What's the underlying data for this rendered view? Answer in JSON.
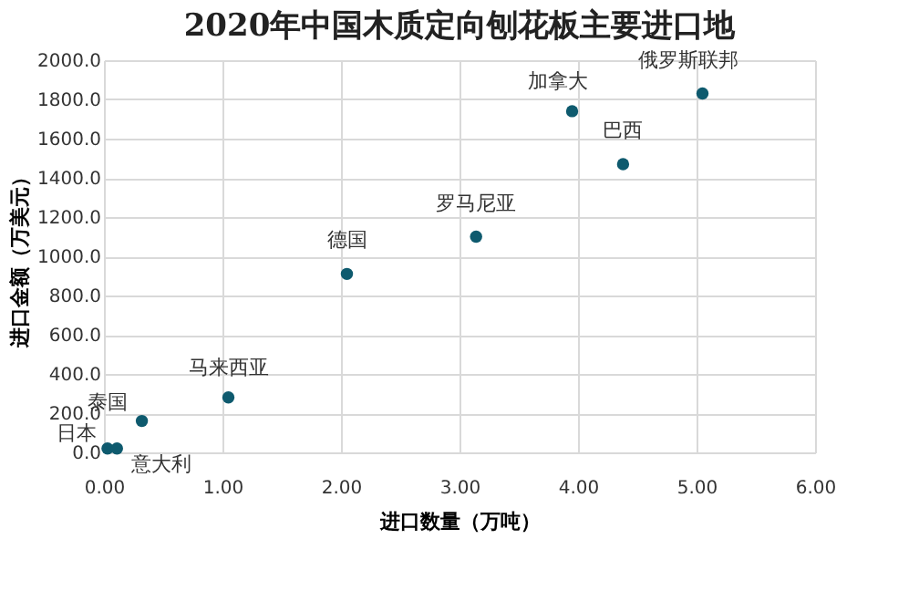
{
  "chart_data": {
    "type": "scatter",
    "title": "2020年中国木质定向刨花板主要进口地",
    "xlabel": "进口数量（万吨）",
    "ylabel": "进口金额（万美元）",
    "x": [
      0.03,
      0.11,
      0.32,
      1.05,
      2.05,
      3.14,
      3.95,
      4.38,
      5.05
    ],
    "series": [
      {
        "color": "#0e5a6e",
        "values": [
          20,
          20,
          160,
          280,
          910,
          1100,
          1740,
          1470,
          1830
        ]
      }
    ],
    "annotations": [
      {
        "text": "日本",
        "x": 0.03,
        "y": 20
      },
      {
        "text": "意大利",
        "x": 0.11,
        "y": 20
      },
      {
        "text": "泰国",
        "x": 0.32,
        "y": 160
      },
      {
        "text": "马来西亚",
        "x": 1.05,
        "y": 280
      },
      {
        "text": "德国",
        "x": 2.05,
        "y": 910
      },
      {
        "text": "罗马尼亚",
        "x": 3.14,
        "y": 1100
      },
      {
        "text": "加拿大",
        "x": 3.95,
        "y": 1740
      },
      {
        "text": "巴西",
        "x": 4.38,
        "y": 1470
      },
      {
        "text": "俄罗斯联邦",
        "x": 5.05,
        "y": 1830
      }
    ],
    "xlim": [
      0,
      6
    ],
    "ylim": [
      0,
      2000
    ],
    "xticks": [
      {
        "value": 0,
        "label": "0.00"
      },
      {
        "value": 1,
        "label": "1.00"
      },
      {
        "value": 2,
        "label": "2.00"
      },
      {
        "value": 3,
        "label": "3.00"
      },
      {
        "value": 4,
        "label": "4.00"
      },
      {
        "value": 5,
        "label": "5.00"
      },
      {
        "value": 6,
        "label": "6.00"
      }
    ],
    "yticks": [
      {
        "value": 0,
        "label": "0.0"
      },
      {
        "value": 200,
        "label": "200.0"
      },
      {
        "value": 400,
        "label": "400.0"
      },
      {
        "value": 600,
        "label": "600.0"
      },
      {
        "value": 800,
        "label": "800.0"
      },
      {
        "value": 1000,
        "label": "1000.0"
      },
      {
        "value": 1200,
        "label": "1200.0"
      },
      {
        "value": 1400,
        "label": "1400.0"
      },
      {
        "value": 1600,
        "label": "1600.0"
      },
      {
        "value": 1800,
        "label": "1800.0"
      },
      {
        "value": 2000,
        "label": "2000.0"
      }
    ],
    "grid": true
  }
}
